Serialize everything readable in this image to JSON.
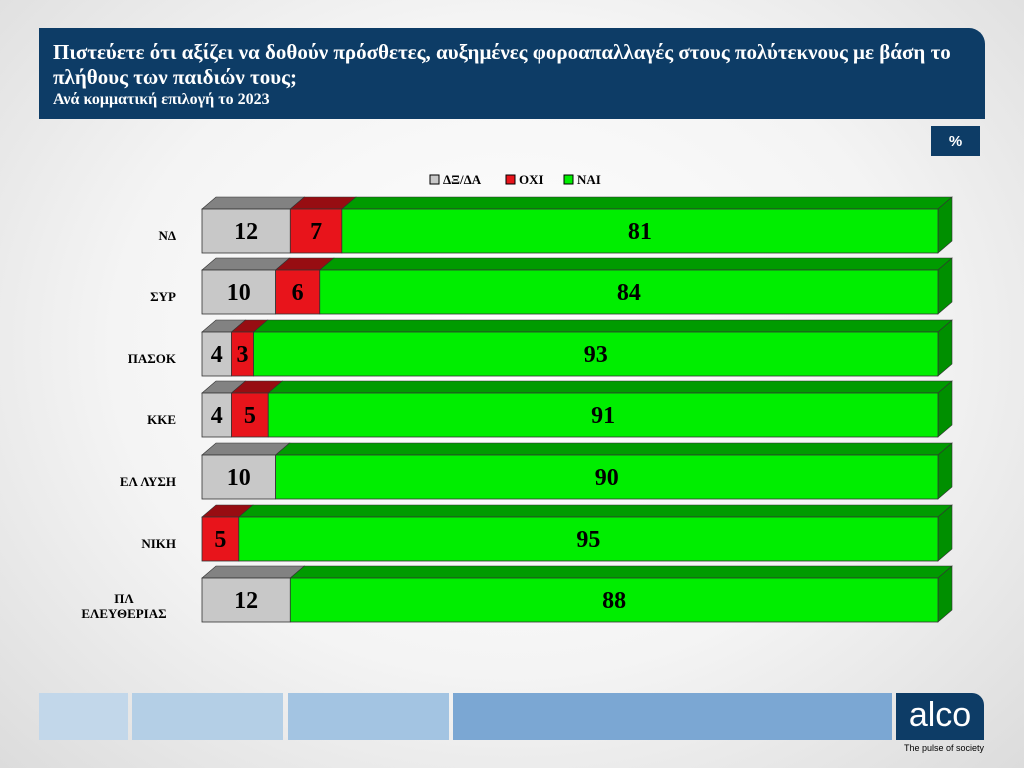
{
  "header": {
    "title": "Πιστεύετε ότι αξίζει να δοθούν πρόσθετες, αυξημένες φοροαπαλλαγές στους πολύτεκνους με βάση το πλήθους των παιδιών τους;",
    "subtitle": "Ανά κομματική επιλογή το 2023"
  },
  "unit_badge": "%",
  "brand": {
    "logo": "alco",
    "tagline": "The pulse of society"
  },
  "chart_data": {
    "type": "bar",
    "orientation": "horizontal",
    "stacked": true,
    "percent": true,
    "categories": [
      "ΝΔ",
      "ΣΥΡ",
      "ΠΑΣΟΚ",
      "ΚΚΕ",
      "ΕΛ ΛΥΣΗ",
      "ΝΙΚΗ",
      "ΠΛ ΕΛΕΥΘΕΡΙΑΣ"
    ],
    "series": [
      {
        "name": "ΔΞ/ΔΑ",
        "color": "#c8c8c8",
        "values": [
          12,
          10,
          4,
          4,
          10,
          0,
          12
        ]
      },
      {
        "name": "ΟΧΙ",
        "color": "#e8141b",
        "values": [
          7,
          6,
          3,
          5,
          0,
          5,
          0
        ]
      },
      {
        "name": "ΝΑΙ",
        "color": "#00ee00",
        "values": [
          81,
          84,
          93,
          91,
          90,
          95,
          88
        ]
      }
    ],
    "xlim": [
      0,
      100
    ],
    "legend_position": "top",
    "grid": false
  },
  "footer_colors": [
    "#c2d7ea",
    "#b4cfe6",
    "#a3c4e2",
    "#7ba7d3"
  ]
}
